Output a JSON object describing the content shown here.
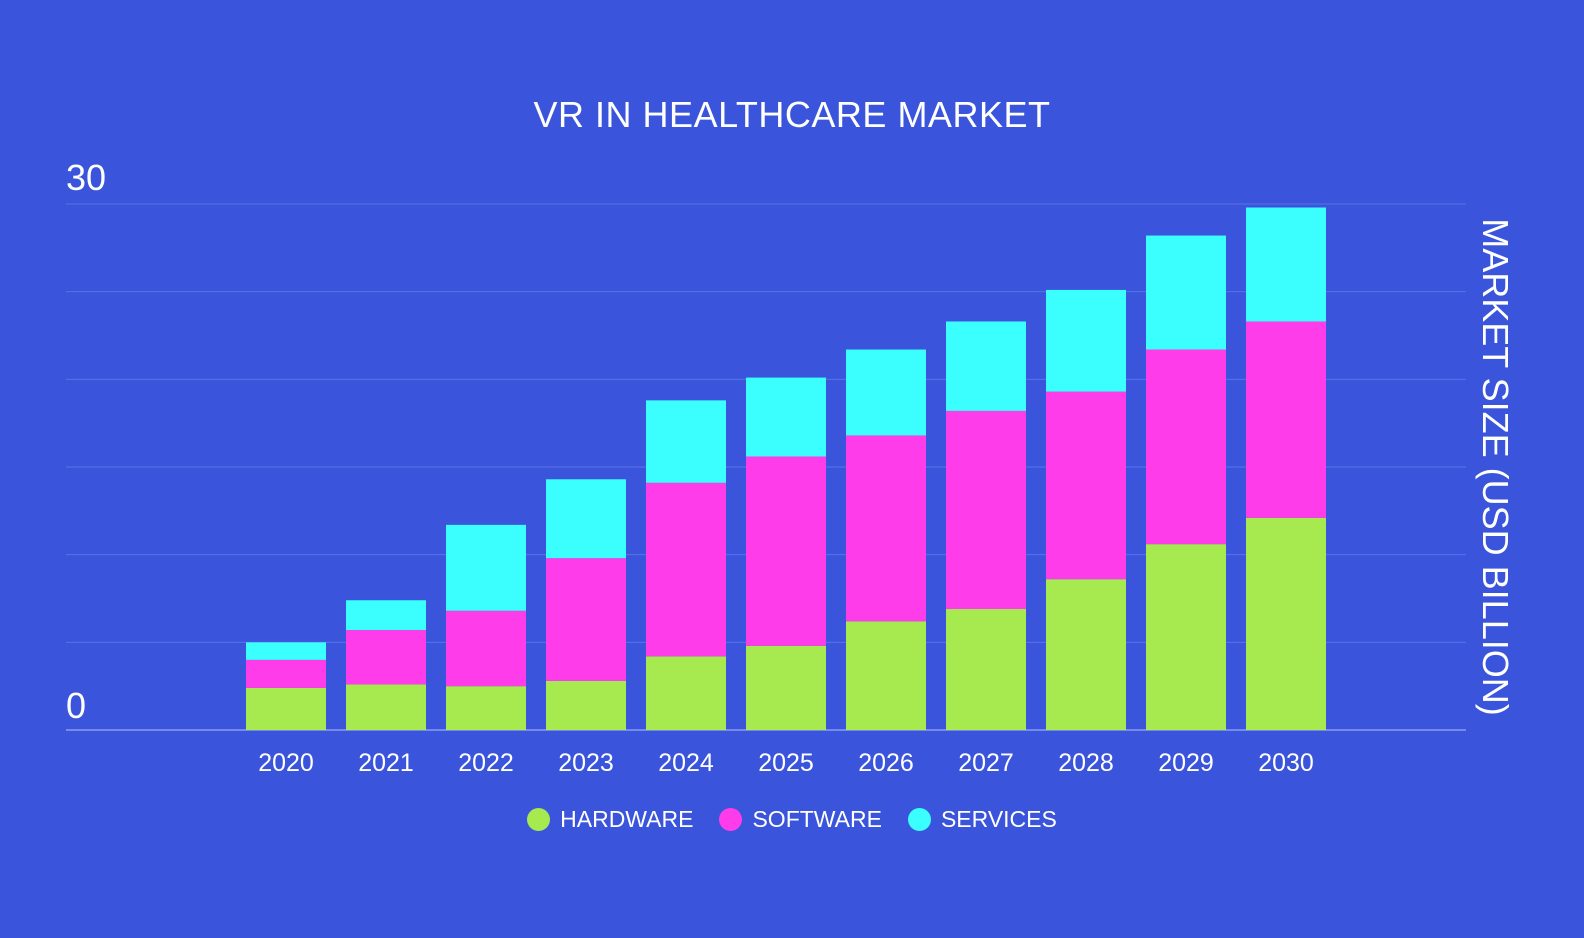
{
  "chart_data": {
    "type": "bar",
    "stacked": true,
    "title": "VR IN HEALTHCARE MARKET",
    "xlabel": "",
    "ylabel": "MARKET SIZE (USD BILLION)",
    "ylim": [
      0,
      30
    ],
    "y_tick_labels": [
      "0",
      "30"
    ],
    "grid": true,
    "legend_position": "bottom-center",
    "categories": [
      "2020",
      "2021",
      "2022",
      "2023",
      "2024",
      "2025",
      "2026",
      "2027",
      "2028",
      "2029",
      "2030"
    ],
    "series": [
      {
        "name": "HARDWARE",
        "color": "#A6EA4F",
        "values": [
          2.4,
          2.6,
          2.5,
          2.8,
          4.2,
          4.8,
          6.2,
          6.9,
          8.6,
          10.6,
          12.1
        ]
      },
      {
        "name": "SOFTWARE",
        "color": "#FF3CEA",
        "values": [
          1.6,
          3.1,
          4.3,
          7.0,
          9.9,
          10.8,
          10.6,
          11.3,
          10.7,
          11.1,
          11.2
        ]
      },
      {
        "name": "SERVICES",
        "color": "#3BFFFF",
        "values": [
          1.0,
          1.7,
          4.9,
          4.5,
          4.7,
          4.5,
          4.9,
          5.1,
          5.8,
          6.5,
          6.5
        ]
      }
    ]
  }
}
